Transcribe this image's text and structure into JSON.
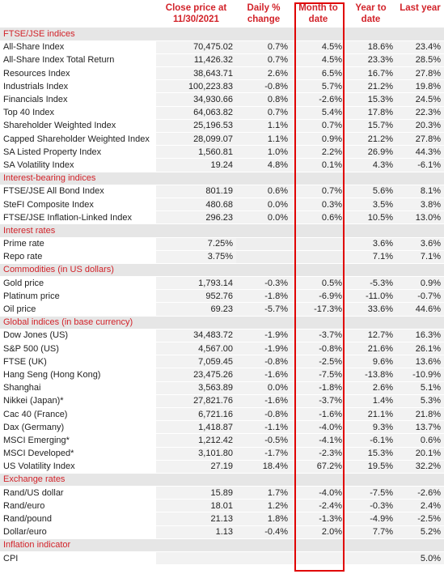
{
  "headers": {
    "close_price": "Close price at 11/30/2021",
    "daily": "Daily % change",
    "mtd": "Month to date",
    "ytd": "Year to date",
    "last_year": "Last year"
  },
  "sections": [
    {
      "title": "FTSE/JSE indices",
      "rows": [
        [
          "All-Share Index",
          "70,475.02",
          "0.7%",
          "4.5%",
          "18.6%",
          "23.4%"
        ],
        [
          "All-Share Index Total Return",
          "11,426.32",
          "0.7%",
          "4.5%",
          "23.3%",
          "28.5%"
        ],
        [
          "Resources Index",
          "38,643.71",
          "2.6%",
          "6.5%",
          "16.7%",
          "27.8%"
        ],
        [
          "Industrials Index",
          "100,223.83",
          "-0.8%",
          "5.7%",
          "21.2%",
          "19.8%"
        ],
        [
          "Financials Index",
          "34,930.66",
          "0.8%",
          "-2.6%",
          "15.3%",
          "24.5%"
        ],
        [
          "Top 40 Index",
          "64,063.82",
          "0.7%",
          "5.4%",
          "17.8%",
          "22.3%"
        ],
        [
          "Shareholder Weighted Index",
          "25,196.53",
          "1.1%",
          "0.7%",
          "15.7%",
          "20.3%"
        ],
        [
          "Capped Shareholder Weighted Index",
          "28,099.07",
          "1.1%",
          "0.9%",
          "21.2%",
          "27.8%"
        ],
        [
          "SA Listed Property Index",
          "1,560.81",
          "1.0%",
          "2.2%",
          "26.9%",
          "44.3%"
        ],
        [
          "SA Volatility Index",
          "19.24",
          "4.8%",
          "0.1%",
          "4.3%",
          "-6.1%"
        ]
      ]
    },
    {
      "title": "Interest-bearing indices",
      "rows": [
        [
          "FTSE/JSE All Bond Index",
          "801.19",
          "0.6%",
          "0.7%",
          "5.6%",
          "8.1%"
        ],
        [
          "SteFI Composite Index",
          "480.68",
          "0.0%",
          "0.3%",
          "3.5%",
          "3.8%"
        ],
        [
          "FTSE/JSE Inflation-Linked Index",
          "296.23",
          "0.0%",
          "0.6%",
          "10.5%",
          "13.0%"
        ]
      ]
    },
    {
      "title": "Interest rates",
      "rows": [
        [
          "Prime rate",
          "7.25%",
          "",
          "",
          "3.6%",
          "3.6%"
        ],
        [
          "Repo rate",
          "3.75%",
          "",
          "",
          "7.1%",
          "7.1%"
        ]
      ]
    },
    {
      "title": "Commodities (in US dollars)",
      "rows": [
        [
          "Gold price",
          "1,793.14",
          "-0.3%",
          "0.5%",
          "-5.3%",
          "0.9%"
        ],
        [
          "Platinum price",
          "952.76",
          "-1.8%",
          "-6.9%",
          "-11.0%",
          "-0.7%"
        ],
        [
          "Oil price",
          "69.23",
          "-5.7%",
          "-17.3%",
          "33.6%",
          "44.6%"
        ]
      ]
    },
    {
      "title": "Global indices (in base currency)",
      "rows": [
        [
          "Dow Jones (US)",
          "34,483.72",
          "-1.9%",
          "-3.7%",
          "12.7%",
          "16.3%"
        ],
        [
          "S&P 500 (US)",
          "4,567.00",
          "-1.9%",
          "-0.8%",
          "21.6%",
          "26.1%"
        ],
        [
          "FTSE (UK)",
          "7,059.45",
          "-0.8%",
          "-2.5%",
          "9.6%",
          "13.6%"
        ],
        [
          "Hang Seng (Hong Kong)",
          "23,475.26",
          "-1.6%",
          "-7.5%",
          "-13.8%",
          "-10.9%"
        ],
        [
          "Shanghai",
          "3,563.89",
          "0.0%",
          "-1.8%",
          "2.6%",
          "5.1%"
        ],
        [
          "Nikkei (Japan)*",
          "27,821.76",
          "-1.6%",
          "-3.7%",
          "1.4%",
          "5.3%"
        ],
        [
          "Cac 40 (France)",
          "6,721.16",
          "-0.8%",
          "-1.6%",
          "21.1%",
          "21.8%"
        ],
        [
          "Dax (Germany)",
          "1,418.87",
          "-1.1%",
          "-4.0%",
          "9.3%",
          "13.7%"
        ],
        [
          "MSCI Emerging*",
          "1,212.42",
          "-0.5%",
          "-4.1%",
          "-6.1%",
          "0.6%"
        ],
        [
          "MSCI Developed*",
          "3,101.80",
          "-1.7%",
          "-2.3%",
          "15.3%",
          "20.1%"
        ],
        [
          "US Volatility Index",
          "27.19",
          "18.4%",
          "67.2%",
          "19.5%",
          "32.2%"
        ]
      ]
    },
    {
      "title": "Exchange rates",
      "rows": [
        [
          "Rand/US dollar",
          "15.89",
          "1.7%",
          "-4.0%",
          "-7.5%",
          "-2.6%"
        ],
        [
          "Rand/euro",
          "18.01",
          "1.2%",
          "-2.4%",
          "-0.3%",
          "2.4%"
        ],
        [
          "Rand/pound",
          "21.13",
          "1.8%",
          "-1.3%",
          "-4.9%",
          "-2.5%"
        ],
        [
          "Dollar/euro",
          "1.13",
          "-0.4%",
          "2.0%",
          "7.7%",
          "5.2%"
        ]
      ]
    },
    {
      "title": "Inflation indicator",
      "rows": [
        [
          "CPI",
          "",
          "",
          "",
          "",
          "5.0%"
        ]
      ]
    }
  ],
  "highlight_color": "#e00000"
}
